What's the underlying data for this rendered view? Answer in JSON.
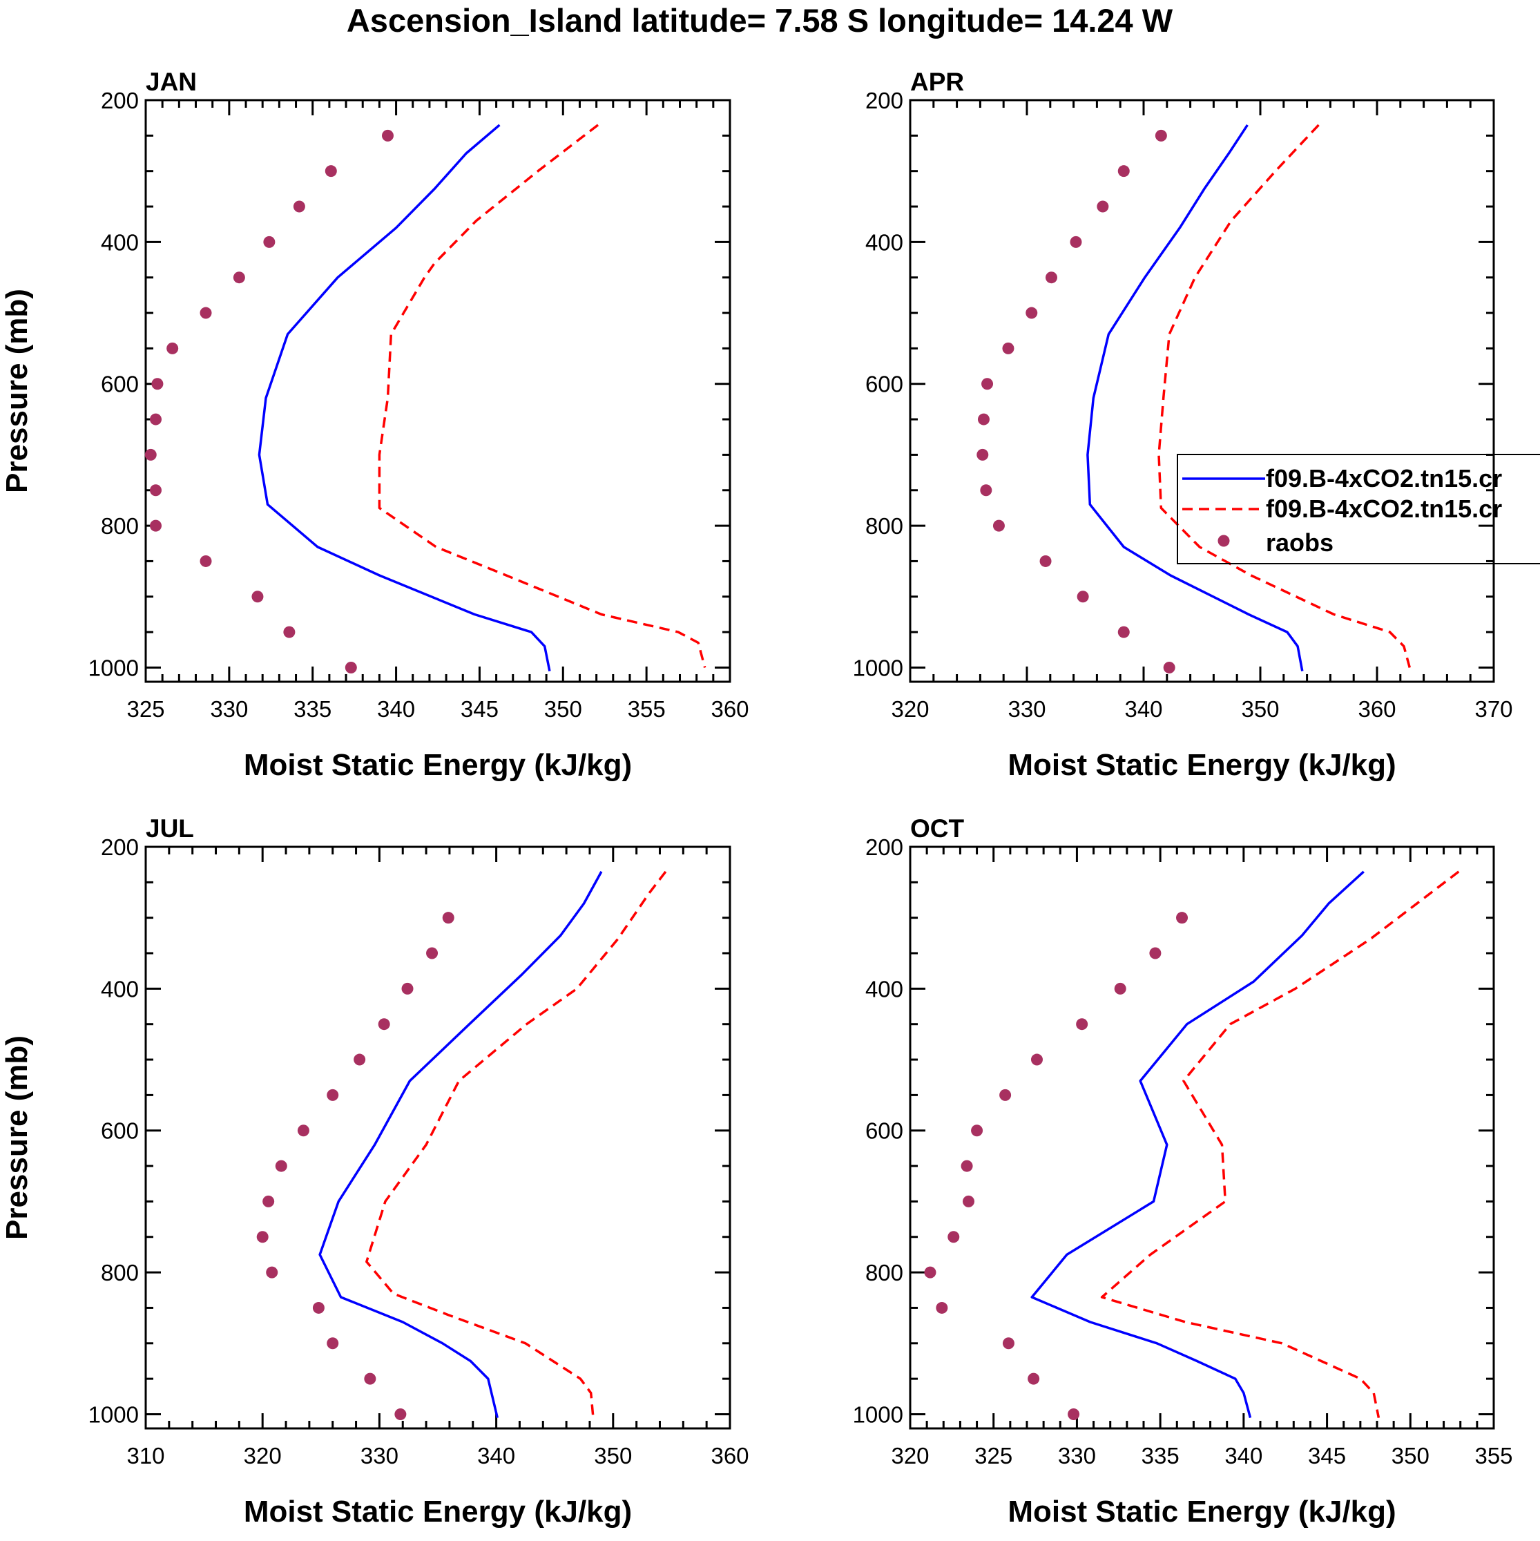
{
  "figure_title": "Ascension_Island  latitude= 7.58 S longitude= 14.24 W",
  "colors": {
    "series_1": "#0000ff",
    "series_2": "#ff0000",
    "raobs": "#a83060"
  },
  "legend": [
    {
      "label": "f09.B-4xCO2.tn15.cr",
      "style": "solid",
      "color": "#0000ff"
    },
    {
      "label": "f09.B-4xCO2.tn15.cr",
      "style": "dashed",
      "color": "#ff0000"
    },
    {
      "label": "raobs",
      "style": "marker",
      "color": "#a83060"
    }
  ],
  "chart_data": [
    {
      "type": "line",
      "title": "JAN",
      "xlabel": "Moist Static Energy (kJ/kg)",
      "ylabel": "Pressure (mb)",
      "xlim": [
        325,
        360
      ],
      "ylim": [
        200,
        1020
      ],
      "xticks": [
        325,
        330,
        335,
        340,
        345,
        350,
        355,
        360
      ],
      "yticks": [
        200,
        400,
        600,
        800,
        1000
      ],
      "series": [
        {
          "name": "f09.B-4xCO2.tn15.cr",
          "style": "solid",
          "p": [
            235,
            275,
            325,
            380,
            450,
            530,
            620,
            700,
            770,
            830,
            870,
            925,
            950,
            970,
            1005
          ],
          "values": [
            346.2,
            344.2,
            342.3,
            340.0,
            336.5,
            333.5,
            332.2,
            331.8,
            332.3,
            335.3,
            339.0,
            344.7,
            348.1,
            348.9,
            349.2
          ]
        },
        {
          "name": "f09.B-4xCO2.tn15.cr",
          "style": "dashed",
          "p": [
            235,
            300,
            370,
            430,
            450,
            530,
            620,
            700,
            775,
            830,
            870,
            925,
            950,
            965,
            1000
          ],
          "values": [
            352.1,
            348.5,
            344.8,
            342.3,
            341.7,
            339.7,
            339.5,
            339.0,
            339.0,
            342.4,
            346.6,
            352.3,
            356.9,
            358.1,
            358.5
          ]
        },
        {
          "name": "raobs",
          "style": "marker",
          "p": [
            250,
            300,
            350,
            400,
            450,
            500,
            550,
            600,
            650,
            700,
            750,
            800,
            850,
            900,
            950,
            1000
          ],
          "values": [
            339.5,
            336.1,
            334.2,
            332.4,
            330.6,
            328.6,
            326.6,
            325.7,
            325.6,
            325.3,
            325.6,
            325.6,
            328.6,
            331.7,
            333.6,
            337.3
          ]
        }
      ]
    },
    {
      "type": "line",
      "title": "APR",
      "xlabel": "Moist Static Energy (kJ/kg)",
      "ylabel": "",
      "xlim": [
        320,
        370
      ],
      "ylim": [
        200,
        1020
      ],
      "xticks": [
        320,
        330,
        340,
        350,
        360,
        370
      ],
      "yticks": [
        200,
        400,
        600,
        800,
        1000
      ],
      "series": [
        {
          "name": "f09.B-4xCO2.tn15.cr",
          "style": "solid",
          "p": [
            235,
            275,
            325,
            380,
            450,
            530,
            620,
            700,
            770,
            830,
            870,
            925,
            950,
            970,
            1005
          ],
          "values": [
            348.9,
            347.3,
            345.2,
            343.1,
            340.1,
            337.0,
            335.7,
            335.2,
            335.4,
            338.3,
            342.3,
            349.0,
            352.3,
            353.2,
            353.6
          ]
        },
        {
          "name": "f09.B-4xCO2.tn15.cr",
          "style": "dashed",
          "p": [
            235,
            300,
            370,
            450,
            530,
            620,
            700,
            775,
            830,
            870,
            925,
            950,
            970,
            1000
          ],
          "values": [
            355.0,
            351.3,
            347.5,
            344.4,
            342.2,
            341.7,
            341.3,
            341.5,
            344.8,
            349.2,
            356.3,
            361.1,
            362.3,
            362.8
          ]
        },
        {
          "name": "raobs",
          "style": "marker",
          "p": [
            250,
            300,
            350,
            400,
            450,
            500,
            550,
            600,
            650,
            700,
            750,
            800,
            850,
            900,
            950,
            1000
          ],
          "values": [
            341.5,
            338.3,
            336.5,
            334.2,
            332.1,
            330.4,
            328.4,
            326.6,
            326.3,
            326.2,
            326.5,
            327.6,
            331.6,
            334.8,
            338.3,
            342.2
          ]
        }
      ]
    },
    {
      "type": "line",
      "title": "JUL",
      "xlabel": "Moist Static Energy (kJ/kg)",
      "ylabel": "Pressure (mb)",
      "xlim": [
        310,
        360
      ],
      "ylim": [
        200,
        1020
      ],
      "xticks": [
        310,
        320,
        330,
        340,
        350,
        360
      ],
      "yticks": [
        200,
        400,
        600,
        800,
        1000
      ],
      "series": [
        {
          "name": "f09.B-4xCO2.tn15.cr",
          "style": "solid",
          "p": [
            235,
            280,
            325,
            380,
            450,
            530,
            620,
            700,
            775,
            835,
            870,
            900,
            925,
            950,
            1005
          ],
          "values": [
            349.0,
            347.5,
            345.5,
            342.2,
            337.7,
            332.6,
            329.6,
            326.5,
            324.9,
            326.7,
            332.0,
            335.4,
            337.8,
            339.3,
            340.1
          ]
        },
        {
          "name": "f09.B-4xCO2.tn15.cr",
          "style": "dashed",
          "p": [
            235,
            265,
            330,
            400,
            450,
            530,
            620,
            700,
            785,
            830,
            860,
            900,
            950,
            970,
            1005
          ],
          "values": [
            354.5,
            353.1,
            350.4,
            346.9,
            342.6,
            336.8,
            334.0,
            330.5,
            328.9,
            331.2,
            335.9,
            342.5,
            347.2,
            348.1,
            348.3
          ]
        },
        {
          "name": "raobs",
          "style": "marker",
          "p": [
            300,
            350,
            400,
            450,
            500,
            550,
            600,
            650,
            700,
            750,
            800,
            850,
            900,
            950,
            1000
          ],
          "values": [
            335.9,
            334.5,
            332.4,
            330.4,
            328.3,
            326.0,
            323.5,
            321.6,
            320.5,
            320.0,
            320.8,
            324.8,
            326.0,
            329.2,
            331.8
          ]
        }
      ]
    },
    {
      "type": "line",
      "title": "OCT",
      "xlabel": "Moist Static Energy (kJ/kg)",
      "ylabel": "",
      "xlim": [
        320,
        355
      ],
      "ylim": [
        200,
        1020
      ],
      "xticks": [
        320,
        325,
        330,
        335,
        340,
        345,
        350,
        355
      ],
      "yticks": [
        200,
        400,
        600,
        800,
        1000
      ],
      "series": [
        {
          "name": "f09.B-4xCO2.tn15.cr",
          "style": "solid",
          "p": [
            235,
            280,
            325,
            390,
            450,
            530,
            620,
            700,
            775,
            835,
            870,
            900,
            925,
            950,
            970,
            1005
          ],
          "values": [
            347.2,
            345.1,
            343.5,
            340.6,
            336.6,
            333.8,
            335.4,
            334.6,
            329.4,
            327.3,
            330.8,
            334.8,
            337.2,
            339.5,
            340.0,
            340.4
          ]
        },
        {
          "name": "f09.B-4xCO2.tn15.cr",
          "style": "dashed",
          "p": [
            235,
            330,
            400,
            450,
            530,
            620,
            700,
            775,
            835,
            870,
            900,
            950,
            970,
            1005
          ],
          "values": [
            352.9,
            347.6,
            343.1,
            339.2,
            336.4,
            338.7,
            338.9,
            334.4,
            331.5,
            336.5,
            342.3,
            347.0,
            347.8,
            348.1
          ]
        },
        {
          "name": "raobs",
          "style": "marker",
          "p": [
            300,
            350,
            400,
            450,
            500,
            550,
            600,
            650,
            700,
            750,
            800,
            850,
            900,
            950,
            1000
          ],
          "values": [
            336.3,
            334.7,
            332.6,
            330.3,
            327.6,
            325.7,
            324.0,
            323.4,
            323.5,
            322.6,
            321.2,
            321.9,
            325.9,
            327.4,
            329.8
          ]
        }
      ]
    }
  ]
}
